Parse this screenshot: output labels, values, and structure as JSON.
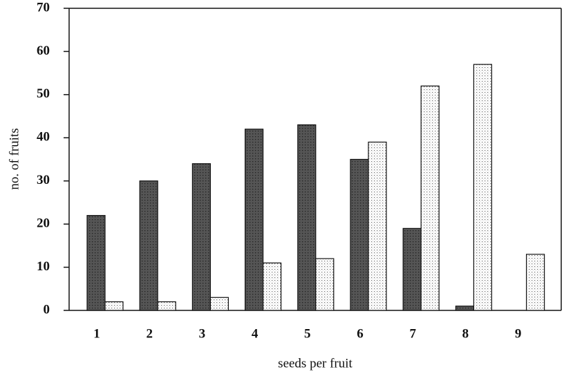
{
  "chart_data": {
    "type": "bar",
    "x_label": "seeds per fruit",
    "y_label": "no. of fruits",
    "categories": [
      "1",
      "2",
      "3",
      "4",
      "5",
      "6",
      "7",
      "8",
      "9"
    ],
    "series": [
      {
        "color": "#555555",
        "values": [
          22,
          30,
          34,
          42,
          43,
          35,
          19,
          1,
          0
        ]
      },
      {
        "color": "#d8d8d8",
        "values": [
          2,
          2,
          3,
          11,
          12,
          39,
          52,
          57,
          13
        ]
      }
    ],
    "ylim": [
      0,
      70
    ],
    "yticks": [
      0,
      10,
      20,
      30,
      40,
      50,
      60,
      70
    ],
    "grid": false
  }
}
